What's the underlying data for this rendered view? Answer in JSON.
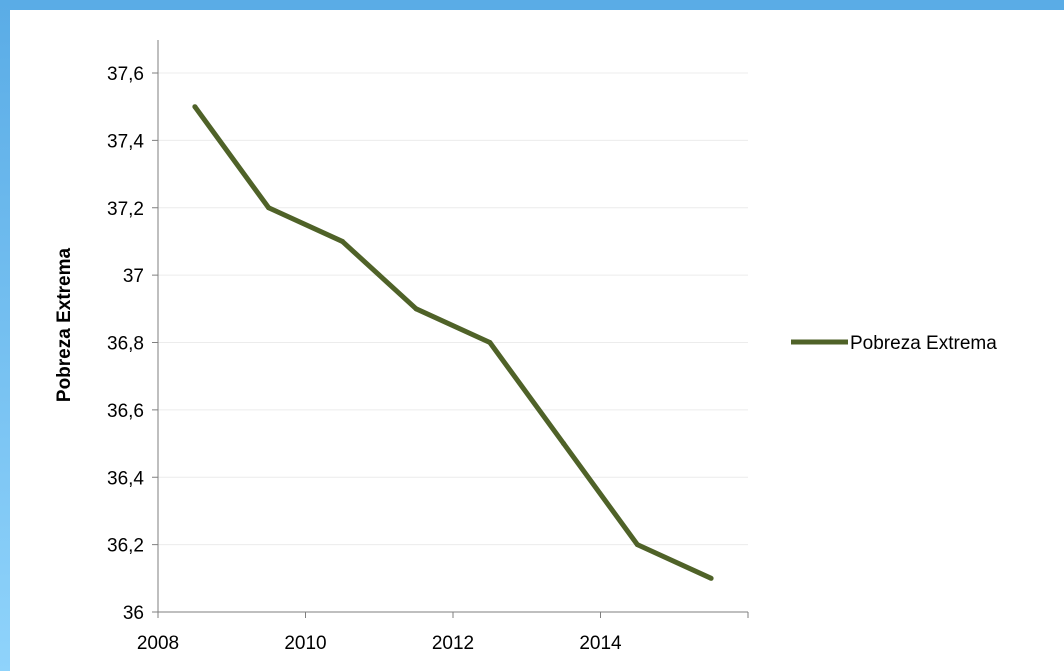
{
  "colors": {
    "frame": "#5aace6",
    "series": "#4f6228",
    "gridline": "#ececec",
    "axis": "#7f7f7f"
  },
  "chart_data": {
    "type": "line",
    "title": "",
    "xlabel": "",
    "ylabel": "Pobreza Extrema",
    "x": [
      2008,
      2009,
      2010,
      2011,
      2012,
      2013,
      2014,
      2015
    ],
    "x_tick_labels": [
      "2008",
      "2010",
      "2012",
      "2014"
    ],
    "x_tick_values": [
      2008,
      2010,
      2012,
      2014
    ],
    "y_tick_labels": [
      "36",
      "36,2",
      "36,4",
      "36,6",
      "36,8",
      "37",
      "37,2",
      "37,4",
      "37,6"
    ],
    "ylim": [
      36,
      37.7
    ],
    "grid": true,
    "legend_position": "right",
    "series": [
      {
        "name": "Pobreza Extrema",
        "values": [
          37.5,
          37.2,
          37.1,
          36.9,
          36.8,
          36.5,
          36.2,
          36.1
        ]
      }
    ]
  }
}
